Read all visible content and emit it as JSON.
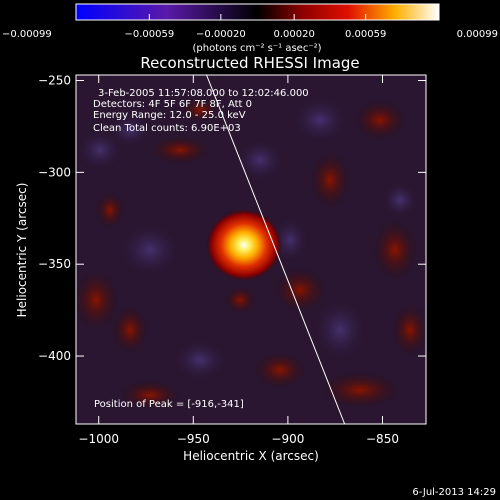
{
  "chart_data": {
    "type": "heatmap",
    "title": "Reconstructed RHESSI Image",
    "xlabel": "Heliocentric X (arcsec)",
    "ylabel": "Heliocentric Y (arcsec)",
    "xlim": [
      -1012,
      -827
    ],
    "ylim": [
      -437,
      -247
    ],
    "xticks": [
      -1000,
      -950,
      -900,
      -850
    ],
    "xtick_labels": [
      "−1000",
      "−950",
      "−900",
      "−850"
    ],
    "yticks": [
      -250,
      -300,
      -350,
      -400
    ],
    "ytick_labels": [
      "−250",
      "−300",
      "−350",
      "−400"
    ],
    "colorbar": {
      "range": [
        -0.00099,
        0.00099
      ],
      "ticks": [
        -0.00099,
        -0.00059,
        -0.0002,
        0.0002,
        0.00059,
        0.00099
      ],
      "tick_labels": [
        "−0.00099",
        "−0.00059",
        "−0.00020",
        "0.00020",
        "0.00059",
        "0.00099"
      ],
      "units_label": "(photons cm⁻² s⁻¹ asec⁻²)"
    },
    "annotations": {
      "time_range": "3-Feb-2005 11:57:08.000 to 12:02:46.000",
      "detectors": "Detectors: 4F 5F 6F 7F 8F, Att 0",
      "energy": "Energy Range: 12.0 - 25.0 keV",
      "clean": "Clean    Total counts: 6.90E+03",
      "peak": "Position of Peak = [-916,-341]"
    },
    "peak_position": [
      -916,
      -341
    ],
    "limb_line": [
      [
        -943,
        -247
      ],
      [
        -870,
        -437
      ]
    ],
    "timestamp": "6-Jul-2013 14:29"
  }
}
